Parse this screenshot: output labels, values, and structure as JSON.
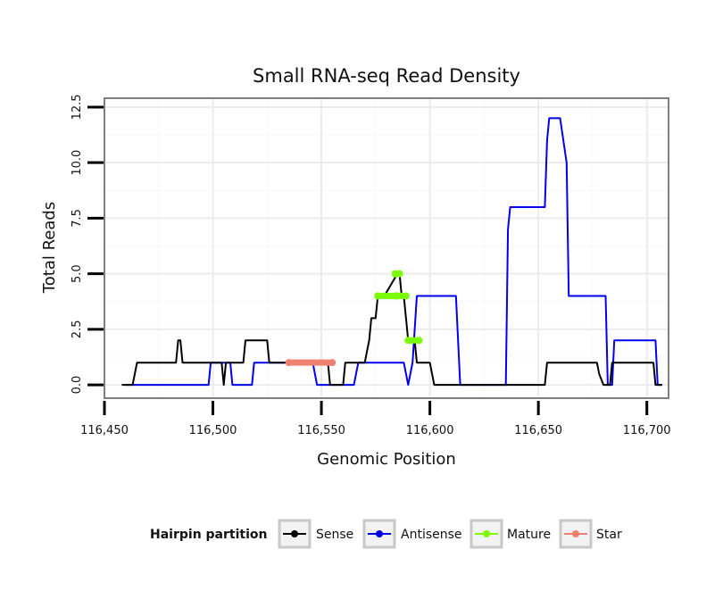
{
  "chart_data": {
    "type": "line",
    "title": "Small RNA-seq Read Density",
    "xlabel": "Genomic Position",
    "ylabel": "Total Reads",
    "xlim": [
      116450,
      116710
    ],
    "ylim": [
      -0.6,
      12.9
    ],
    "x_ticks": [
      {
        "value": 116450,
        "label": "116,450"
      },
      {
        "value": 116500,
        "label": "116,500"
      },
      {
        "value": 116550,
        "label": "116,550"
      },
      {
        "value": 116600,
        "label": "116,600"
      },
      {
        "value": 116650,
        "label": "116,650"
      },
      {
        "value": 116700,
        "label": "116,700"
      }
    ],
    "y_ticks": [
      {
        "value": 0,
        "label": "0.0"
      },
      {
        "value": 2.5,
        "label": "2.5"
      },
      {
        "value": 5,
        "label": "5.0"
      },
      {
        "value": 7.5,
        "label": "7.5"
      },
      {
        "value": 10,
        "label": "10.0"
      },
      {
        "value": 12.5,
        "label": "12.5"
      }
    ],
    "legend": {
      "title": "Hairpin partition",
      "placement": "bottom",
      "entries": [
        {
          "name": "Sense",
          "color": "#000000"
        },
        {
          "name": "Antisense",
          "color": "#0000ee"
        },
        {
          "name": "Mature",
          "color": "#7cfc00"
        },
        {
          "name": "Star",
          "color": "#f08070"
        }
      ]
    },
    "series": [
      {
        "name": "Antisense",
        "color": "#0000ee",
        "x": [
          116460,
          116498,
          116499,
          116508,
          116509,
          116518,
          116519,
          116546,
          116548,
          116565,
          116567,
          116588,
          116590,
          116592,
          116594,
          116612,
          116613,
          116614,
          116635,
          116636,
          116637,
          116653,
          116654,
          116655,
          116660,
          116663,
          116664,
          116681,
          116682,
          116684,
          116685,
          116704,
          116705,
          116707
        ],
        "y": [
          0,
          0,
          1,
          1,
          0,
          0,
          1,
          1,
          0,
          0,
          1,
          1,
          0,
          1,
          4,
          4,
          2,
          0,
          0,
          7,
          8,
          8,
          11,
          12,
          12,
          10,
          4,
          4,
          0,
          0,
          2,
          2,
          0,
          0
        ]
      },
      {
        "name": "Sense",
        "color": "#000000",
        "x": [
          116458,
          116463,
          116465,
          116483,
          116484,
          116485,
          116486,
          116504,
          116505,
          116506,
          116514,
          116515,
          116525,
          116526,
          116553,
          116554,
          116555,
          116560,
          116561,
          116570,
          116571,
          116572,
          116573,
          116575,
          116576,
          116578,
          116579,
          116585,
          116586,
          116587,
          116588,
          116590,
          116591,
          116593,
          116594,
          116600,
          116601,
          116602,
          116653,
          116654,
          116677,
          116678,
          116680,
          116681,
          116683,
          116684,
          116703,
          116704,
          116707
        ],
        "y": [
          0,
          0,
          1,
          1,
          2,
          2,
          1,
          1,
          0,
          1,
          1,
          2,
          2,
          1,
          1,
          0,
          0,
          0,
          1,
          1,
          1.5,
          2,
          3,
          3,
          4,
          4,
          4,
          5,
          5,
          4,
          4,
          2,
          2,
          2,
          1,
          1,
          0.5,
          0,
          0,
          1,
          1,
          0.5,
          0,
          0,
          0,
          1,
          1,
          0,
          0
        ]
      }
    ],
    "segments": [
      {
        "series": "Star",
        "color": "#f08070",
        "points": [
          [
            116535,
            1
          ],
          [
            116555,
            1
          ]
        ]
      },
      {
        "series": "Mature",
        "color": "#7cfc00",
        "points": [
          [
            116576,
            4
          ],
          [
            116584,
            4
          ]
        ]
      },
      {
        "series": "Mature",
        "color": "#7cfc00",
        "points": [
          [
            116584,
            5
          ],
          [
            116586,
            5
          ]
        ]
      },
      {
        "series": "Mature",
        "color": "#7cfc00",
        "points": [
          [
            116585,
            4
          ],
          [
            116589,
            4
          ]
        ]
      },
      {
        "series": "Mature",
        "color": "#7cfc00",
        "points": [
          [
            116590,
            2
          ],
          [
            116595,
            2
          ]
        ]
      }
    ]
  }
}
